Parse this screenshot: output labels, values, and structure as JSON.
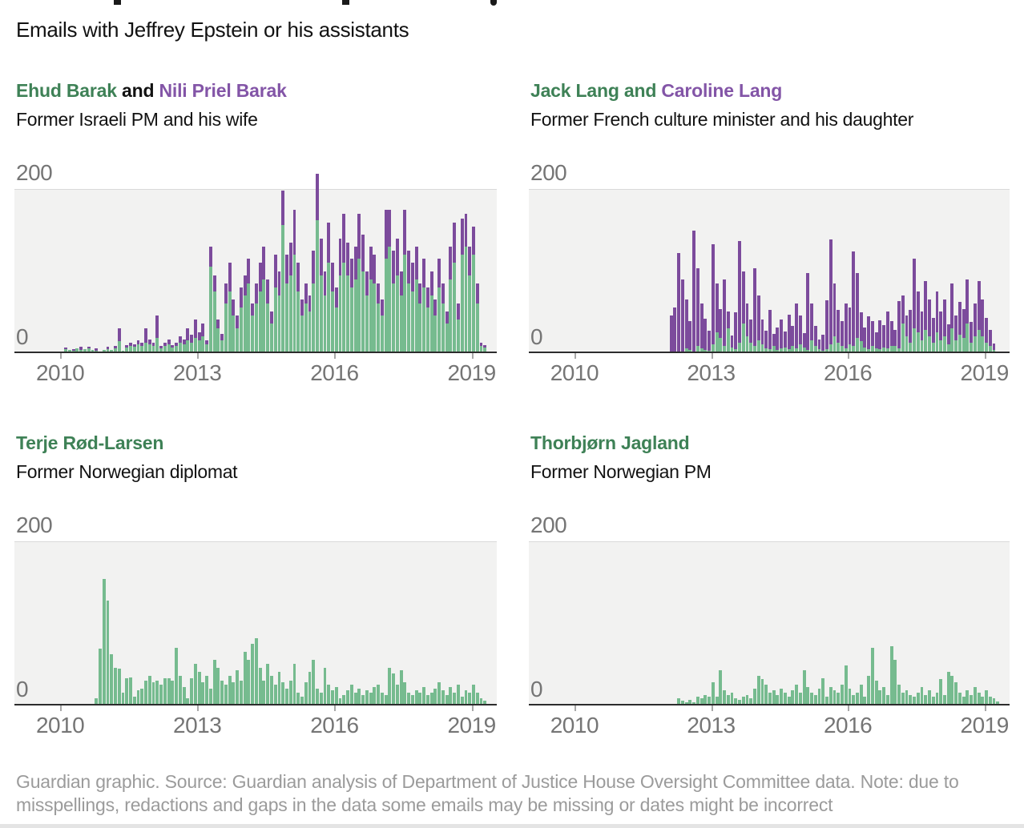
{
  "page": {
    "subtitle": "Emails with Jeffrey Epstein or his assistants",
    "footer": "Guardian graphic. Source: Guardian analysis of Department of Justice House Oversight Committee data. Note: due to misspellings, redactions and gaps in the data some emails may be missing or dates might be incorrect"
  },
  "colors": {
    "bar_green": "#76bb8f",
    "bar_purple": "#7c4b9c",
    "title_green": "#3e8156",
    "title_purple": "#8355a7",
    "title_plain": "#121212",
    "plot_background": "#f2f2f1",
    "gridline": "#d9d9d9",
    "axis_line": "#2d2d2d",
    "axis_text": "#757575",
    "footer_text": "#9b9b9b"
  },
  "axis": {
    "y_max_label": "200",
    "y_zero_label": "0"
  },
  "chart_data": [
    {
      "type": "bar",
      "stacked": true,
      "title_parts": [
        {
          "text": "Ehud Barak",
          "role": "green"
        },
        {
          "text": " and ",
          "role": "plain"
        },
        {
          "text": "Nili Priel Barak",
          "role": "purple"
        }
      ],
      "subtitle": "Former Israeli PM and his wife",
      "ylim": [
        0,
        200
      ],
      "x_domain_years": [
        2009.0,
        2019.55
      ],
      "x_ticks": [
        2010,
        2013,
        2016,
        2019
      ],
      "grid": "top-line-only",
      "series": [
        {
          "name": "Ehud Barak",
          "color": "#76bb8f",
          "start_year": 2010,
          "start_month": 1,
          "values": [
            0,
            4,
            3,
            2,
            5,
            3,
            4,
            5,
            3,
            2,
            0,
            3,
            4,
            3,
            5,
            14,
            2,
            6,
            8,
            7,
            10,
            8,
            12,
            10,
            8,
            18,
            5,
            8,
            10,
            6,
            8,
            12,
            10,
            15,
            12,
            18,
            15,
            20,
            10,
            105,
            75,
            30,
            15,
            60,
            75,
            45,
            30,
            55,
            70,
            85,
            45,
            60,
            75,
            90,
            60,
            35,
            80,
            70,
            157,
            85,
            95,
            120,
            75,
            45,
            60,
            50,
            85,
            163,
            95,
            70,
            110,
            75,
            55,
            95,
            110,
            95,
            80,
            90,
            115,
            100,
            70,
            90,
            85,
            60,
            45,
            115,
            130,
            85,
            95,
            70,
            120,
            85,
            75,
            90,
            60,
            80,
            55,
            70,
            45,
            80,
            60,
            35,
            90,
            110,
            40,
            120,
            130,
            95,
            120,
            60,
            8,
            6
          ]
        },
        {
          "name": "Nili Priel Barak",
          "color": "#7c4b9c",
          "start_year": 2010,
          "start_month": 1,
          "values": [
            0,
            2,
            0,
            2,
            0,
            4,
            0,
            2,
            0,
            3,
            0,
            0,
            3,
            0,
            3,
            16,
            0,
            3,
            4,
            3,
            5,
            4,
            18,
            6,
            4,
            27,
            3,
            4,
            6,
            3,
            4,
            8,
            6,
            15,
            10,
            22,
            10,
            15,
            5,
            25,
            20,
            10,
            8,
            25,
            35,
            20,
            15,
            25,
            25,
            30,
            15,
            25,
            35,
            40,
            30,
            15,
            40,
            30,
            42,
            35,
            40,
            55,
            35,
            20,
            25,
            20,
            40,
            57,
            45,
            30,
            50,
            35,
            25,
            45,
            60,
            40,
            35,
            40,
            55,
            45,
            30,
            40,
            35,
            25,
            20,
            60,
            45,
            40,
            45,
            30,
            55,
            40,
            35,
            40,
            25,
            35,
            25,
            30,
            20,
            35,
            25,
            15,
            40,
            50,
            20,
            45,
            40,
            35,
            35,
            25,
            4,
            3
          ]
        }
      ]
    },
    {
      "type": "bar",
      "stacked": true,
      "title_parts": [
        {
          "text": "Jack Lang and ",
          "role": "green"
        },
        {
          "text": "Caroline Lang",
          "role": "purple"
        }
      ],
      "subtitle": "Former French culture minister and his daughter",
      "ylim": [
        0,
        200
      ],
      "x_domain_years": [
        2009.0,
        2019.55
      ],
      "x_ticks": [
        2010,
        2013,
        2016,
        2019
      ],
      "grid": "top-line-only",
      "series": [
        {
          "name": "Jack Lang",
          "color": "#76bb8f",
          "start_year": 2012,
          "start_month": 2,
          "values": [
            0,
            0,
            0,
            0,
            5,
            3,
            0,
            8,
            5,
            3,
            2,
            10,
            25,
            18,
            8,
            30,
            6,
            4,
            12,
            35,
            20,
            12,
            8,
            15,
            10,
            5,
            4,
            8,
            3,
            5,
            6,
            4,
            8,
            5,
            10,
            6,
            3,
            15,
            8,
            4,
            2,
            4,
            10,
            20,
            12,
            8,
            5,
            10,
            8,
            18,
            14,
            6,
            4,
            8,
            5,
            4,
            6,
            5,
            8,
            8,
            5,
            35,
            20,
            12,
            30,
            25,
            15,
            28,
            20,
            12,
            25,
            15,
            20,
            10,
            30,
            15,
            22,
            18,
            35,
            12,
            20,
            28,
            20,
            12,
            8,
            3
          ]
        },
        {
          "name": "Caroline Lang",
          "color": "#7c4b9c",
          "start_year": 2012,
          "start_month": 2,
          "values": [
            45,
            55,
            122,
            90,
            60,
            35,
            150,
            95,
            55,
            38,
            25,
            123,
            60,
            35,
            82,
            20,
            15,
            45,
            125,
            65,
            40,
            28,
            95,
            55,
            30,
            22,
            48,
            15,
            28,
            35,
            20,
            42,
            25,
            55,
            35,
            18,
            95,
            45,
            25,
            12,
            20,
            60,
            129,
            65,
            40,
            30,
            55,
            45,
            116,
            80,
            35,
            25,
            40,
            30,
            20,
            35,
            28,
            45,
            30,
            20,
            58,
            35,
            25,
            40,
            85,
            50,
            35,
            60,
            45,
            30,
            50,
            35,
            45,
            25,
            55,
            30,
            40,
            35,
            55,
            25,
            40,
            60,
            45,
            30,
            20,
            8
          ]
        }
      ]
    },
    {
      "type": "bar",
      "stacked": false,
      "title_parts": [
        {
          "text": "Terje Rød-Larsen",
          "role": "green"
        }
      ],
      "subtitle": "Former Norwegian diplomat",
      "ylim": [
        0,
        200
      ],
      "x_domain_years": [
        2009.0,
        2019.55
      ],
      "x_ticks": [
        2010,
        2013,
        2016,
        2019
      ],
      "grid": "top-line-only",
      "series": [
        {
          "name": "Terje Rød-Larsen",
          "color": "#76bb8f",
          "start_year": 2010,
          "start_month": 10,
          "values": [
            8,
            69,
            155,
            128,
            62,
            45,
            44,
            15,
            33,
            34,
            10,
            18,
            20,
            30,
            35,
            28,
            30,
            25,
            33,
            33,
            30,
            70,
            35,
            22,
            8,
            33,
            50,
            40,
            28,
            35,
            20,
            55,
            45,
            30,
            25,
            35,
            28,
            42,
            30,
            65,
            55,
            75,
            82,
            45,
            30,
            50,
            35,
            25,
            40,
            28,
            20,
            30,
            50,
            15,
            10,
            28,
            40,
            55,
            20,
            15,
            45,
            25,
            18,
            22,
            8,
            12,
            18,
            25,
            15,
            20,
            12,
            18,
            15,
            22,
            25,
            15,
            12,
            45,
            38,
            25,
            42,
            28,
            15,
            12,
            18,
            15,
            22,
            12,
            15,
            20,
            28,
            18,
            12,
            22,
            15,
            25,
            10,
            18,
            15,
            25,
            15,
            8,
            5
          ]
        }
      ]
    },
    {
      "type": "bar",
      "stacked": false,
      "title_parts": [
        {
          "text": "Thorbjørn Jagland",
          "role": "green"
        }
      ],
      "subtitle": "Former Norwegian PM",
      "ylim": [
        0,
        200
      ],
      "x_domain_years": [
        2009.0,
        2019.55
      ],
      "x_ticks": [
        2010,
        2013,
        2016,
        2019
      ],
      "grid": "top-line-only",
      "series": [
        {
          "name": "Thorbjørn Jagland",
          "color": "#76bb8f",
          "start_year": 2012,
          "start_month": 4,
          "values": [
            8,
            5,
            3,
            6,
            3,
            10,
            8,
            12,
            10,
            28,
            10,
            42,
            18,
            12,
            15,
            8,
            6,
            10,
            12,
            8,
            20,
            35,
            32,
            25,
            15,
            18,
            12,
            20,
            15,
            10,
            18,
            25,
            15,
            42,
            22,
            15,
            12,
            20,
            33,
            10,
            22,
            18,
            15,
            25,
            48,
            20,
            12,
            15,
            25,
            10,
            35,
            70,
            30,
            18,
            22,
            12,
            72,
            55,
            25,
            15,
            18,
            12,
            10,
            15,
            22,
            12,
            18,
            10,
            15,
            32,
            12,
            40,
            35,
            28,
            15,
            10,
            18,
            12,
            22,
            15,
            10,
            18,
            10,
            8,
            4
          ]
        }
      ]
    }
  ]
}
